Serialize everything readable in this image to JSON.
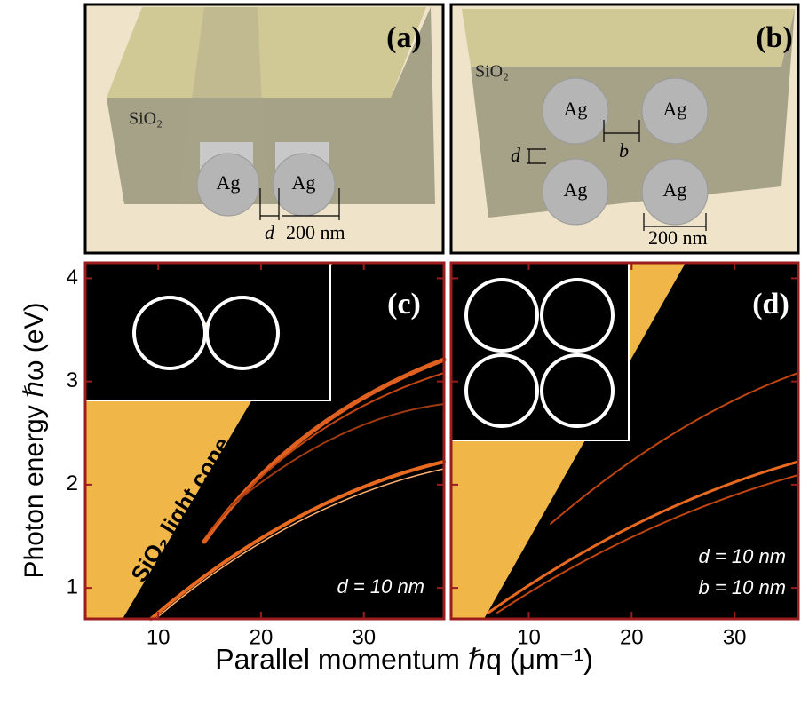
{
  "panel_a": {
    "label": "(a)",
    "medium": "SiO₂",
    "wires": [
      "Ag",
      "Ag"
    ],
    "gap": "d",
    "diameter": "200 nm"
  },
  "panel_b": {
    "label": "(b)",
    "medium": "SiO₂",
    "wires": [
      "Ag",
      "Ag",
      "Ag",
      "Ag"
    ],
    "gap_d": "d",
    "gap_b": "b",
    "diameter": "200 nm"
  },
  "axes": {
    "xlabel": "Parallel momentum ℏq (μm⁻¹)",
    "ylabel": "Photon energy ℏω (eV)"
  },
  "chart_data": [
    {
      "type": "dispersion",
      "label": "(c)",
      "annotations": [
        "SiO₂ light cone",
        "d = 10 nm"
      ],
      "xlim": [
        2.9,
        37.8
      ],
      "ylim": [
        0.7,
        4.15
      ],
      "xticks": [
        10,
        20,
        30
      ],
      "yticks": [
        1,
        2,
        3,
        4
      ]
    },
    {
      "type": "dispersion",
      "label": "(d)",
      "annotations": [
        "d = 10 nm",
        "b = 10 nm"
      ],
      "xlim": [
        2.45,
        36.2
      ],
      "ylim": [
        0.7,
        4.15
      ],
      "xticks": [
        10,
        20,
        30
      ],
      "yticks": [
        1,
        2,
        3,
        4
      ]
    }
  ]
}
